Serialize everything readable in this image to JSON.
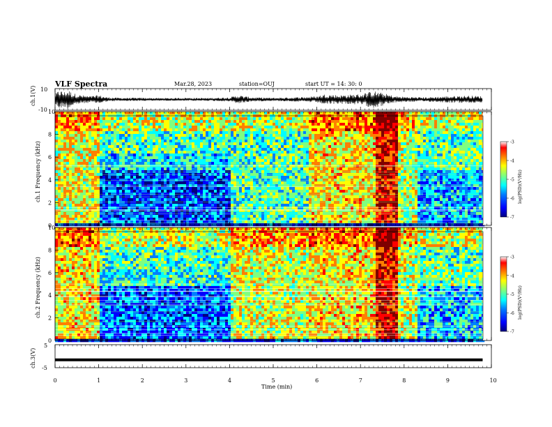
{
  "header": {
    "title": "VLF Spectra",
    "date": "Mar.28, 2023",
    "station": "station=OUJ",
    "start": "start  UT  =   14: 30: 0"
  },
  "chart_data": [
    {
      "type": "line",
      "panel": "ch1-waveform",
      "ylabel": "ch.1(V)",
      "ylim": [
        -10,
        10
      ],
      "yticks": [
        "10",
        "-10"
      ],
      "xlim": [
        0,
        10
      ],
      "envelope_x": [
        0.0,
        0.1,
        0.2,
        0.3,
        0.4,
        0.5,
        0.6,
        0.8,
        1.0,
        1.2,
        1.5,
        2.0,
        2.5,
        3.0,
        3.5,
        4.0,
        4.2,
        4.5,
        5.0,
        5.5,
        6.0,
        6.2,
        6.5,
        7.0,
        7.3,
        7.5,
        7.8,
        8.0,
        8.5,
        9.0,
        9.5,
        9.8
      ],
      "envelope_y": [
        5,
        9,
        7,
        9,
        6,
        5,
        4,
        3,
        4,
        2,
        1.5,
        1.5,
        1.2,
        1.5,
        1.3,
        2,
        4,
        2,
        1.5,
        2,
        3,
        5,
        4,
        5,
        8,
        6,
        3,
        2.5,
        2,
        3,
        3.5,
        3
      ]
    },
    {
      "type": "heatmap",
      "panel": "ch1-spectrogram",
      "ylabel": "ch.1  Frequency  (kHz)",
      "yticks": [
        "0",
        "2",
        "4",
        "6",
        "8",
        "10"
      ],
      "xlim": [
        0,
        10
      ],
      "ylim": [
        0,
        10
      ],
      "colorbar": {
        "label": "log(PSD)(V²/Hz)",
        "ticks": [
          "-3",
          "-4",
          "-5",
          "-6",
          "-7"
        ],
        "range": [
          -7,
          -3
        ]
      },
      "segments": [
        {
          "t": [
            0.0,
            1.0
          ],
          "level": 0.6
        },
        {
          "t": [
            1.0,
            4.0
          ],
          "level": 0.22
        },
        {
          "t": [
            4.0,
            5.8
          ],
          "level": 0.45
        },
        {
          "t": [
            5.8,
            7.3
          ],
          "level": 0.62
        },
        {
          "t": [
            7.3,
            7.8
          ],
          "level": 0.85
        },
        {
          "t": [
            7.8,
            8.3
          ],
          "level": 0.55
        },
        {
          "t": [
            8.3,
            9.8
          ],
          "level": 0.32
        }
      ]
    },
    {
      "type": "heatmap",
      "panel": "ch2-spectrogram",
      "ylabel": "ch.2  Frequency  (kHz)",
      "yticks": [
        "0",
        "2",
        "4",
        "6",
        "8",
        "10"
      ],
      "xlim": [
        0,
        10
      ],
      "ylim": [
        0,
        10
      ],
      "colorbar": {
        "label": "log(PSD)(V²/Hz)",
        "ticks": [
          "-3",
          "-4",
          "-5",
          "-6",
          "-7"
        ],
        "range": [
          -7,
          -3
        ]
      },
      "segments": [
        {
          "t": [
            0.0,
            1.0
          ],
          "level": 0.62
        },
        {
          "t": [
            1.0,
            4.0
          ],
          "level": 0.25
        },
        {
          "t": [
            4.0,
            5.8
          ],
          "level": 0.58
        },
        {
          "t": [
            5.8,
            7.3
          ],
          "level": 0.62
        },
        {
          "t": [
            7.3,
            7.8
          ],
          "level": 0.85
        },
        {
          "t": [
            7.8,
            8.3
          ],
          "level": 0.55
        },
        {
          "t": [
            8.3,
            9.8
          ],
          "level": 0.35
        }
      ]
    },
    {
      "type": "line",
      "panel": "ch3-waveform",
      "ylabel": "ch.3(V)",
      "ylim": [
        -5,
        5
      ],
      "yticks": [
        "5",
        "-5"
      ],
      "xlim": [
        0,
        10
      ],
      "x": [
        0,
        9.8
      ],
      "y": [
        -1.6,
        -1.6
      ]
    }
  ],
  "xaxis": {
    "label": "Time  (min)",
    "ticks": [
      "0",
      "1",
      "2",
      "3",
      "4",
      "5",
      "6",
      "7",
      "8",
      "9",
      "10"
    ]
  },
  "colors": {
    "jet": [
      "#00007f",
      "#0000ff",
      "#007fff",
      "#00ffff",
      "#7fff7f",
      "#ffff00",
      "#ff7f00",
      "#ff0000",
      "#7f0000"
    ]
  }
}
